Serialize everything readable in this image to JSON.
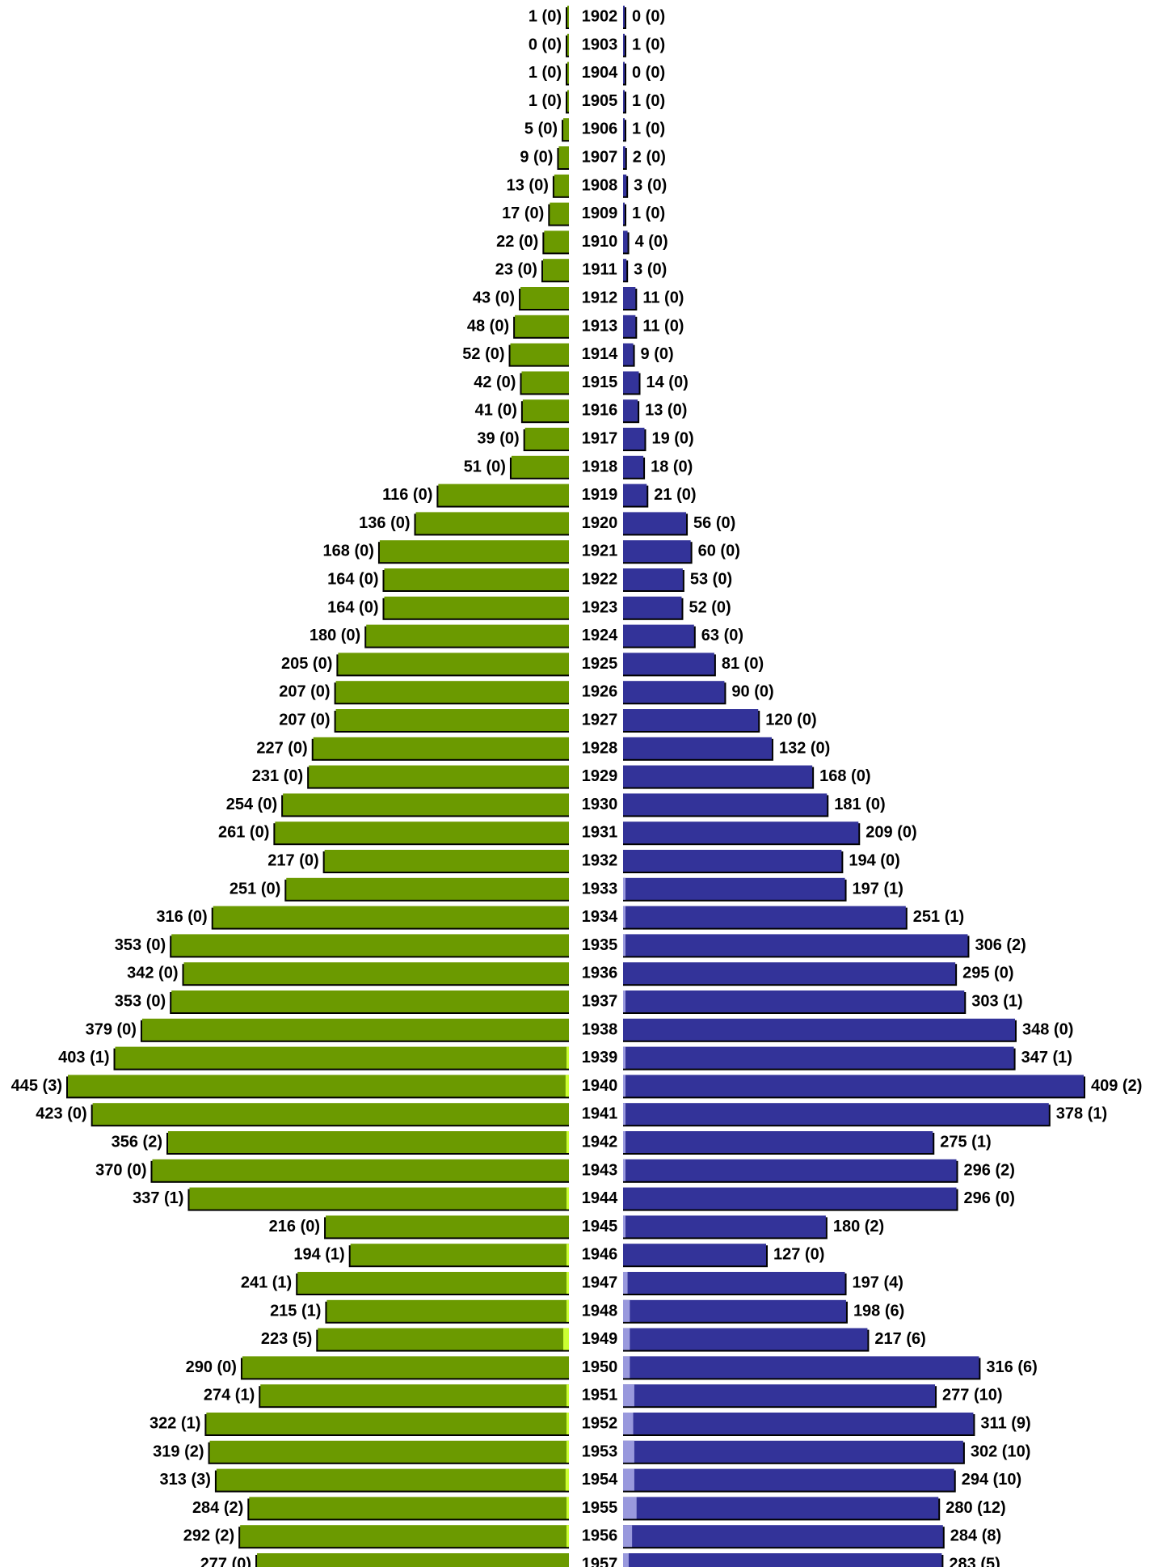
{
  "chart_data": {
    "type": "bar",
    "layout": "population-pyramid",
    "x_scale": "linear",
    "left_max": 445,
    "right_max": 409,
    "categories": [
      "1902",
      "1903",
      "1904",
      "1905",
      "1906",
      "1907",
      "1908",
      "1909",
      "1910",
      "1911",
      "1912",
      "1913",
      "1914",
      "1915",
      "1916",
      "1917",
      "1918",
      "1919",
      "1920",
      "1921",
      "1922",
      "1923",
      "1924",
      "1925",
      "1926",
      "1927",
      "1928",
      "1929",
      "1930",
      "1931",
      "1932",
      "1933",
      "1934",
      "1935",
      "1936",
      "1937",
      "1938",
      "1939",
      "1940",
      "1941",
      "1942",
      "1943",
      "1944",
      "1945",
      "1946",
      "1947",
      "1948",
      "1949",
      "1950",
      "1951",
      "1952",
      "1953",
      "1954",
      "1955",
      "1956",
      "1957"
    ],
    "series": [
      {
        "side": "left",
        "color": "#6b9a00",
        "highlight_color": "#ccff33",
        "values": [
          1,
          0,
          1,
          1,
          5,
          9,
          13,
          17,
          22,
          23,
          43,
          48,
          52,
          42,
          41,
          39,
          51,
          116,
          136,
          168,
          164,
          164,
          180,
          205,
          207,
          207,
          227,
          231,
          254,
          261,
          217,
          251,
          316,
          353,
          342,
          353,
          379,
          403,
          445,
          423,
          356,
          370,
          337,
          216,
          194,
          241,
          215,
          223,
          290,
          274,
          322,
          319,
          313,
          284,
          292,
          277
        ],
        "sub_values": [
          0,
          0,
          0,
          0,
          0,
          0,
          0,
          0,
          0,
          0,
          0,
          0,
          0,
          0,
          0,
          0,
          0,
          0,
          0,
          0,
          0,
          0,
          0,
          0,
          0,
          0,
          0,
          0,
          0,
          0,
          0,
          0,
          0,
          0,
          0,
          0,
          0,
          1,
          3,
          0,
          2,
          0,
          1,
          0,
          1,
          1,
          1,
          5,
          0,
          1,
          1,
          2,
          3,
          2,
          2,
          0
        ],
        "labels": [
          "1 (0)",
          "0 (0)",
          "1 (0)",
          "1 (0)",
          "5 (0)",
          "9 (0)",
          "13 (0)",
          "17 (0)",
          "22 (0)",
          "23 (0)",
          "43 (0)",
          "48 (0)",
          "52 (0)",
          "42 (0)",
          "41 (0)",
          "39 (0)",
          "51 (0)",
          "116 (0)",
          "136 (0)",
          "168 (0)",
          "164 (0)",
          "164 (0)",
          "180 (0)",
          "205 (0)",
          "207 (0)",
          "207 (0)",
          "227 (0)",
          "231 (0)",
          "254 (0)",
          "261 (0)",
          "217 (0)",
          "251 (0)",
          "316 (0)",
          "353 (0)",
          "342 (0)",
          "353 (0)",
          "379 (0)",
          "403 (1)",
          "445 (3)",
          "423 (0)",
          "356 (2)",
          "370 (0)",
          "337 (1)",
          "216 (0)",
          "194 (1)",
          "241 (1)",
          "215 (1)",
          "223 (5)",
          "290 (0)",
          "274 (1)",
          "322 (1)",
          "319 (2)",
          "313 (3)",
          "284 (2)",
          "292 (2)",
          "277 (0)"
        ]
      },
      {
        "side": "right",
        "color": "#333399",
        "highlight_color": "#9999dd",
        "values": [
          0,
          1,
          0,
          1,
          1,
          2,
          3,
          1,
          4,
          3,
          11,
          11,
          9,
          14,
          13,
          19,
          18,
          21,
          56,
          60,
          53,
          52,
          63,
          81,
          90,
          120,
          132,
          168,
          181,
          209,
          194,
          197,
          251,
          306,
          295,
          303,
          348,
          347,
          409,
          378,
          275,
          296,
          296,
          180,
          127,
          197,
          198,
          217,
          316,
          277,
          311,
          302,
          294,
          280,
          284,
          283
        ],
        "sub_values": [
          0,
          0,
          0,
          0,
          0,
          0,
          0,
          0,
          0,
          0,
          0,
          0,
          0,
          0,
          0,
          0,
          0,
          0,
          0,
          0,
          0,
          0,
          0,
          0,
          0,
          0,
          0,
          0,
          0,
          0,
          0,
          1,
          1,
          2,
          0,
          1,
          0,
          1,
          2,
          1,
          1,
          2,
          0,
          2,
          0,
          4,
          6,
          6,
          6,
          10,
          9,
          10,
          10,
          12,
          8,
          5
        ],
        "labels": [
          "0 (0)",
          "1 (0)",
          "0 (0)",
          "1 (0)",
          "1 (0)",
          "2 (0)",
          "3 (0)",
          "1 (0)",
          "4 (0)",
          "3 (0)",
          "11 (0)",
          "11 (0)",
          "9 (0)",
          "14 (0)",
          "13 (0)",
          "19 (0)",
          "18 (0)",
          "21 (0)",
          "56 (0)",
          "60 (0)",
          "53 (0)",
          "52 (0)",
          "63 (0)",
          "81 (0)",
          "90 (0)",
          "120 (0)",
          "132 (0)",
          "168 (0)",
          "181 (0)",
          "209 (0)",
          "194 (0)",
          "197 (1)",
          "251 (1)",
          "306 (2)",
          "295 (0)",
          "303 (1)",
          "348 (0)",
          "347 (1)",
          "409 (2)",
          "378 (1)",
          "275 (1)",
          "296 (2)",
          "296 (0)",
          "180 (2)",
          "127 (0)",
          "197 (4)",
          "198 (6)",
          "217 (6)",
          "316 (6)",
          "277 (10)",
          "311 (9)",
          "302 (10)",
          "294 (10)",
          "280 (12)",
          "284 (8)",
          "283 (5)"
        ]
      }
    ]
  }
}
